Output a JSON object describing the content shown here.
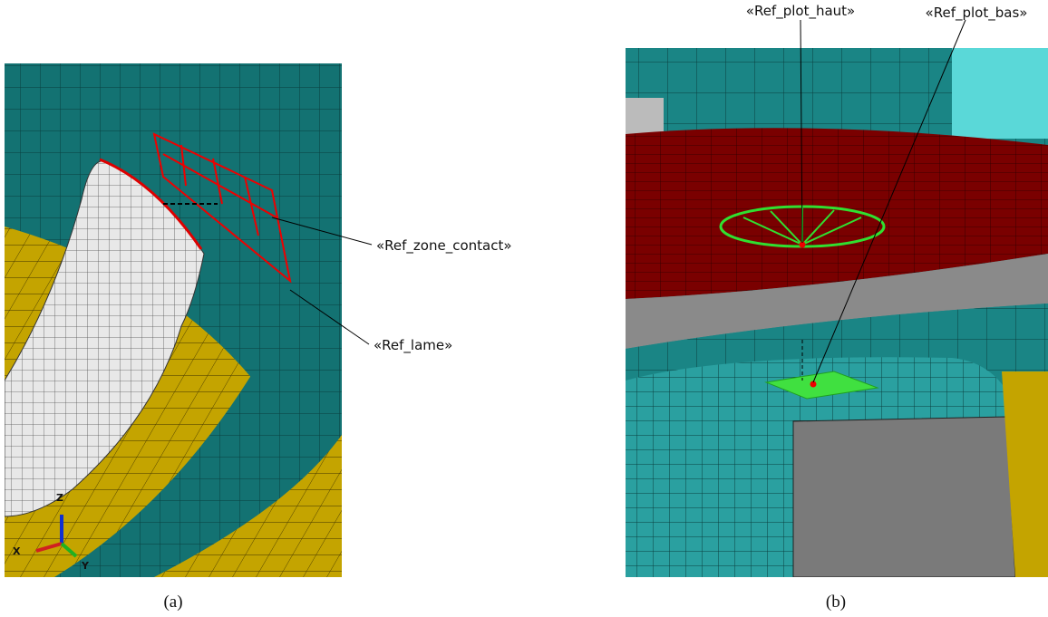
{
  "figure": {
    "panels": [
      {
        "caption": "(a)",
        "labels": [
          "«Ref_zone_contact»",
          "«Ref_lame»"
        ],
        "axes": [
          "Z",
          "X",
          "Y"
        ]
      },
      {
        "caption": "(b)",
        "labels": [
          "«Ref_plot_haut»",
          "«Ref_plot_bas»"
        ]
      }
    ]
  }
}
